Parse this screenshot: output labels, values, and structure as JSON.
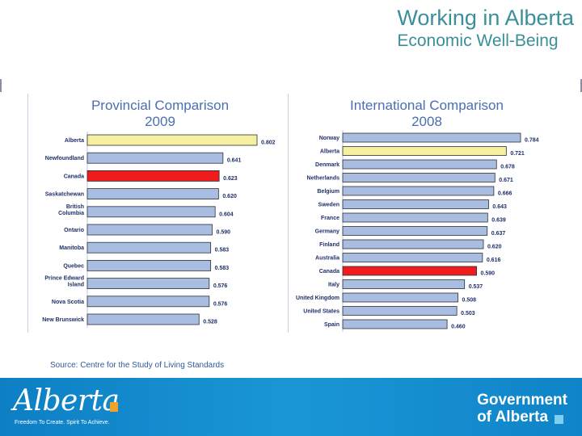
{
  "slide": {
    "title_line1": "Working in Alberta",
    "title_line2": "Economic Well-Being",
    "source": "Source: Centre for the Study of Living Standards"
  },
  "footer": {
    "logo_text": "Alberta",
    "tagline": "Freedom To Create. Spirit To Achieve.",
    "gov_line1": "Government",
    "gov_line2": "of Alberta"
  },
  "colors": {
    "bar_default": "#a9bde0",
    "bar_highlight": "#f4f0a0",
    "bar_canada": "#ee1c1c",
    "title_teal": "#3a8f9a",
    "chart_title_blue": "#4a6fb0"
  },
  "chart_data": [
    {
      "type": "bar",
      "orientation": "horizontal",
      "title": "Provincial Comparison",
      "subtitle": "2009",
      "categories": [
        "Alberta",
        "Newfoundland",
        "Canada",
        "Saskatchewan",
        "British Columbia",
        "Ontario",
        "Manitoba",
        "Quebec",
        "Prince Edward Island",
        "Nova Scotia",
        "New Brunswick"
      ],
      "values": [
        0.802,
        0.641,
        0.623,
        0.62,
        0.604,
        0.59,
        0.583,
        0.583,
        0.576,
        0.576,
        0.528
      ],
      "value_labels": [
        "0.802",
        "0.641",
        "0.623",
        "0.620",
        "0.604",
        "0.590",
        "0.583",
        "0.583",
        "0.576",
        "0.576",
        "0.528"
      ],
      "highlight": {
        "Alberta": "bar_highlight",
        "Canada": "bar_canada"
      },
      "xlim": [
        0,
        0.802
      ]
    },
    {
      "type": "bar",
      "orientation": "horizontal",
      "title": "International Comparison",
      "subtitle": "2008",
      "categories": [
        "Norway",
        "Alberta",
        "Denmark",
        "Netherlands",
        "Belgium",
        "Sweden",
        "France",
        "Germany",
        "Finland",
        "Australia",
        "Canada",
        "Italy",
        "United Kingdom",
        "United States",
        "Spain"
      ],
      "values": [
        0.784,
        0.721,
        0.678,
        0.671,
        0.666,
        0.643,
        0.639,
        0.637,
        0.62,
        0.616,
        0.59,
        0.537,
        0.508,
        0.503,
        0.46
      ],
      "value_labels": [
        "0.784",
        "0.721",
        "0.678",
        "0.671",
        "0.666",
        "0.643",
        "0.639",
        "0.637",
        "0.620",
        "0.616",
        "0.590",
        "0.537",
        "0.508",
        "0.503",
        "0.460"
      ],
      "highlight": {
        "Alberta": "bar_highlight",
        "Canada": "bar_canada"
      },
      "xlim": [
        0,
        0.784
      ]
    }
  ]
}
